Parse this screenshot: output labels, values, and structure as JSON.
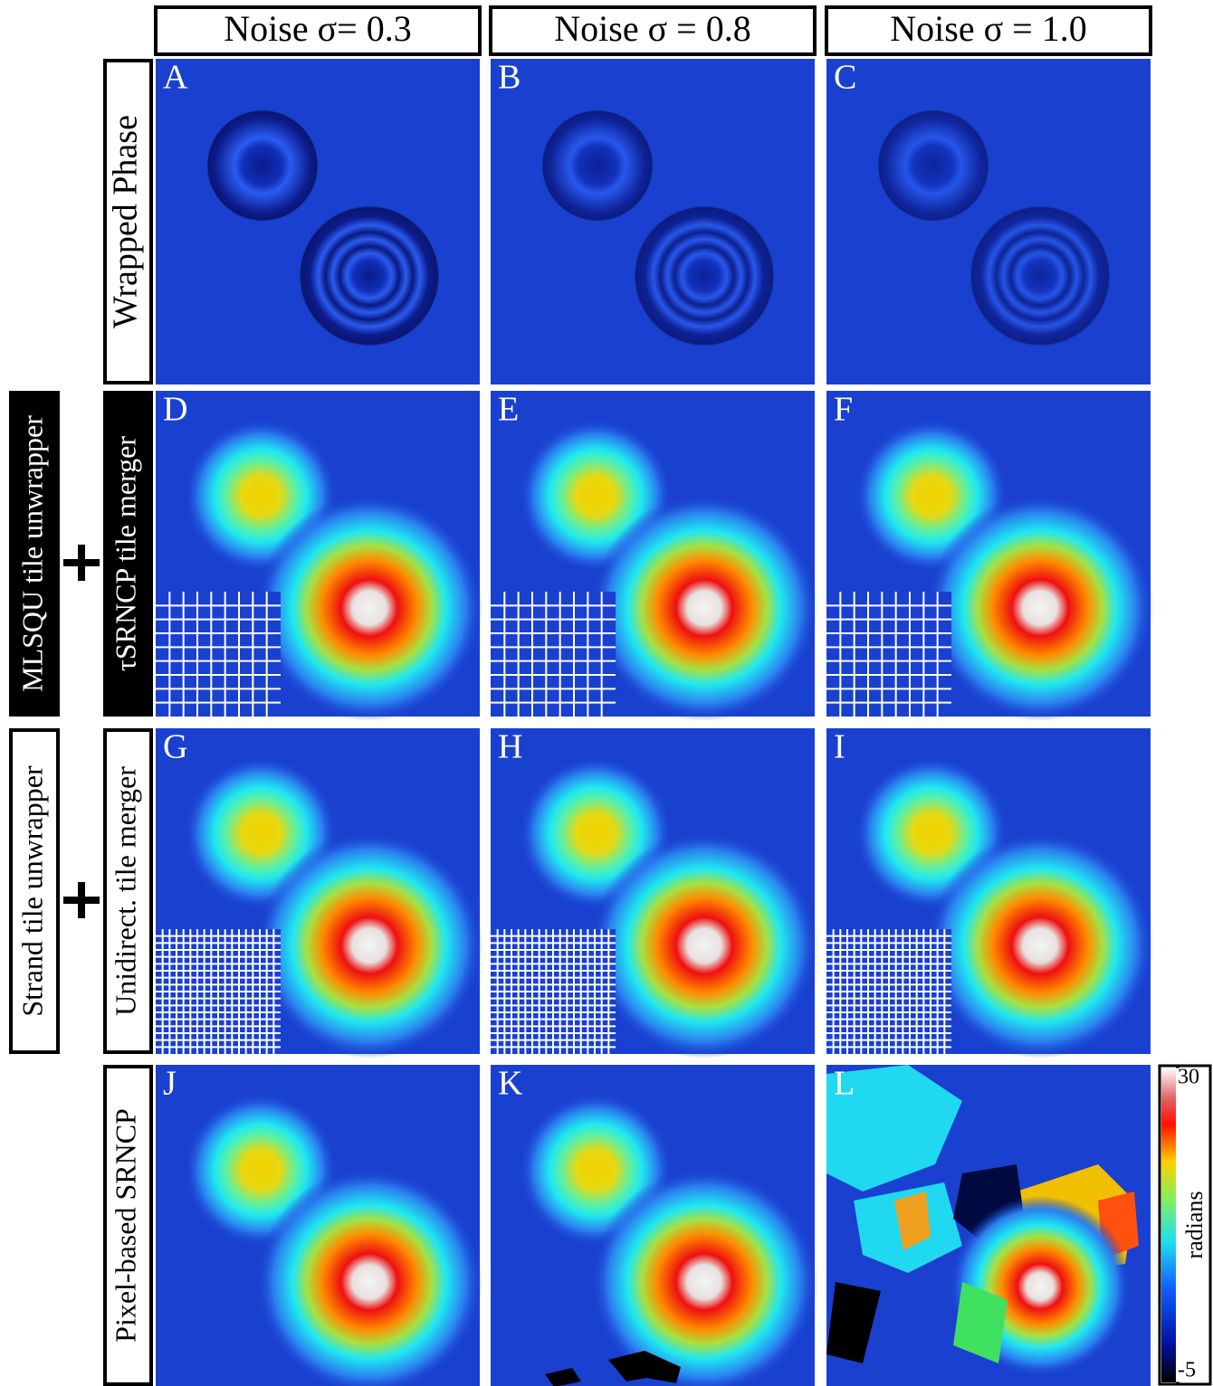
{
  "columns": [
    "Noise σ= 0.3",
    "Noise σ = 0.8",
    "Noise σ = 1.0"
  ],
  "rows": [
    {
      "label": "Wrapped Phase",
      "panels": [
        "A",
        "B",
        "C"
      ]
    },
    {
      "unwrapper": "MLSQU tile unwrapper",
      "label": "τSRNCP tile merger",
      "panels": [
        "D",
        "E",
        "F"
      ]
    },
    {
      "unwrapper": "Strand tile unwrapper",
      "label": "Unidirect. tile merger",
      "panels": [
        "G",
        "H",
        "I"
      ]
    },
    {
      "label": "Pixel-based SRNCP",
      "panels": [
        "J",
        "K",
        "L"
      ]
    }
  ],
  "colorbar": {
    "label": "radians",
    "lim": [
      -5,
      30
    ],
    "ticks": [
      30,
      -5
    ]
  }
}
